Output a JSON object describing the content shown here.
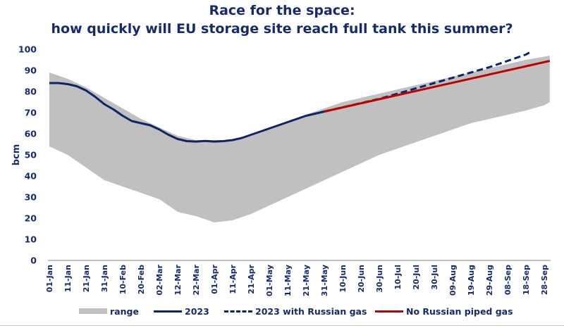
{
  "chart_data": {
    "type": "area",
    "title": "Race for the space:",
    "subtitle": "how quickly will EU storage site reach full tank this summer?",
    "xlabel": "",
    "ylabel": "bcm",
    "ylim": [
      0,
      100
    ],
    "yticks": [
      0,
      10,
      20,
      30,
      40,
      50,
      60,
      70,
      80,
      90,
      100
    ],
    "xlim_days": [
      0,
      273
    ],
    "x_tick_days": [
      0,
      10,
      20,
      30,
      40,
      50,
      60,
      70,
      80,
      90,
      100,
      110,
      120,
      130,
      140,
      150,
      160,
      170,
      180,
      190,
      200,
      210,
      220,
      230,
      240,
      250,
      260,
      270
    ],
    "x_tick_labels": [
      "01-Jan",
      "11-Jan",
      "21-Jan",
      "31-Jan",
      "10-Feb",
      "20-Feb",
      "02-Mar",
      "12-Mar",
      "22-Mar",
      "01-Apr",
      "11-Apr",
      "21-Apr",
      "01-May",
      "11-May",
      "21-May",
      "31-May",
      "10-Jun",
      "20-Jun",
      "30-Jun",
      "10-Jul",
      "20-Jul",
      "30-Jul",
      "09-Aug",
      "19-Aug",
      "29-Aug",
      "08-Sep",
      "18-Sep",
      "28-Sep"
    ],
    "grid": false,
    "legend_position": "bottom",
    "series": [
      {
        "name": "range",
        "kind": "band",
        "color": "#c0c0c0",
        "x": [
          0,
          10,
          20,
          30,
          40,
          50,
          60,
          70,
          80,
          90,
          100,
          110,
          120,
          130,
          140,
          150,
          160,
          170,
          180,
          190,
          200,
          210,
          220,
          230,
          240,
          250,
          260,
          270,
          273
        ],
        "upper": [
          89,
          86,
          82,
          77,
          72,
          67,
          63,
          59,
          57,
          57,
          57,
          59,
          62,
          66,
          69,
          72,
          75,
          77,
          79,
          81,
          83,
          85,
          87,
          89,
          91,
          93,
          95,
          96.5,
          97
        ],
        "lower": [
          54,
          50,
          44,
          38,
          35,
          32,
          29,
          23,
          21,
          18,
          19,
          22,
          26,
          30,
          34,
          38,
          42,
          46,
          50,
          53,
          56,
          59,
          62,
          65,
          67,
          69,
          71,
          73.5,
          75
        ]
      },
      {
        "name": "2023",
        "kind": "line",
        "color": "#0d2468",
        "x": [
          0,
          5,
          10,
          15,
          20,
          25,
          30,
          35,
          40,
          45,
          50,
          55,
          60,
          65,
          70,
          75,
          80,
          85,
          90,
          95,
          100,
          105,
          110,
          115,
          120,
          125,
          130,
          135,
          140,
          145,
          150
        ],
        "y": [
          84,
          84,
          83.5,
          82.5,
          80.5,
          77.5,
          74,
          71.5,
          68.5,
          66,
          65,
          64,
          62,
          59.5,
          57.5,
          56.5,
          56.3,
          56.6,
          56.3,
          56.5,
          57,
          58,
          59.5,
          61,
          62.5,
          64,
          65.5,
          67,
          68.5,
          69.5,
          70.5
        ]
      },
      {
        "name": "2023 with Russian gas",
        "kind": "dashed",
        "color": "#0d2468",
        "x": [
          150,
          160,
          170,
          180,
          190,
          200,
          210,
          220,
          230,
          240,
          250,
          260,
          263
        ],
        "y": [
          70.5,
          72.5,
          74.5,
          76.5,
          79,
          81.5,
          84,
          86.5,
          89,
          91.5,
          94.5,
          97.5,
          99
        ]
      },
      {
        "name": "No Russian piped gas",
        "kind": "line",
        "color": "#c00000",
        "x": [
          150,
          273
        ],
        "y": [
          70.5,
          94.5
        ]
      }
    ]
  },
  "legend": {
    "range": "range",
    "y2023": "2023",
    "with_russian": "2023 with Russian gas",
    "no_russian": "No Russian piped gas"
  }
}
